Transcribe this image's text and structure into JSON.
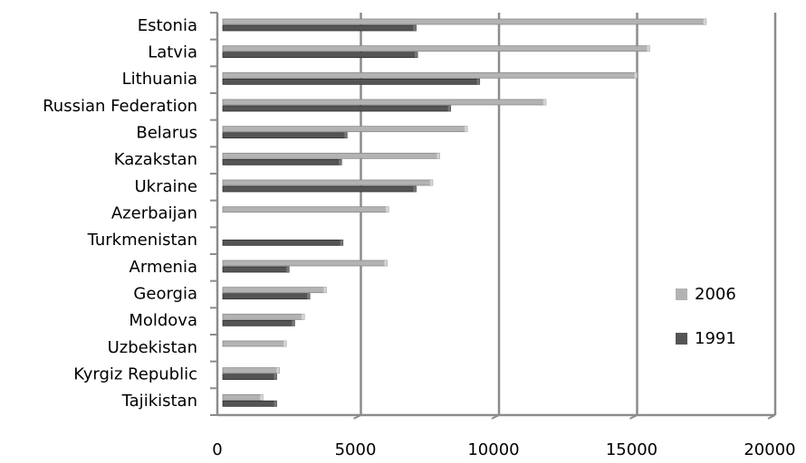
{
  "chart_data": {
    "type": "bar",
    "orientation": "horizontal",
    "categories": [
      "Estonia",
      "Latvia",
      "Lithuania",
      "Russian Federation",
      "Belarus",
      "Kazakstan",
      "Ukraine",
      "Azerbaijan",
      "Turkmenistan",
      "Armenia",
      "Georgia",
      "Moldova",
      "Uzbekistan",
      "Kyrgiz Republic",
      "Tajikistan"
    ],
    "series": [
      {
        "name": "2006",
        "color": "#b3b3b3",
        "values": [
          17500,
          15450,
          15000,
          11700,
          8850,
          7850,
          7600,
          6000,
          null,
          5950,
          3750,
          2950,
          2300,
          2050,
          1450
        ]
      },
      {
        "name": "1991",
        "color": "#555555",
        "values": [
          7000,
          7050,
          9300,
          8250,
          4500,
          4300,
          7000,
          null,
          4350,
          2400,
          3150,
          2600,
          null,
          1950,
          1950
        ]
      }
    ],
    "xlim": [
      0,
      20000
    ],
    "xticks": [
      0,
      5000,
      10000,
      15000,
      20000
    ],
    "grid": "vertical",
    "legend": "right"
  }
}
